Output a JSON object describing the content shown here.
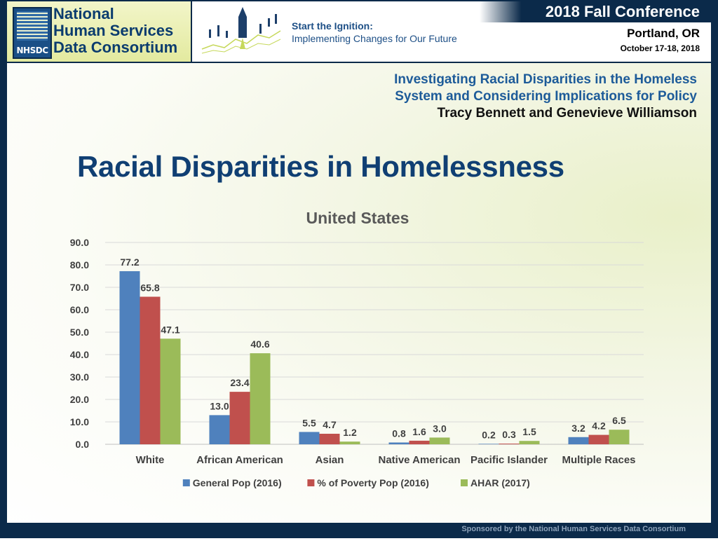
{
  "header": {
    "logo_lines": [
      "National",
      "Human Services",
      "Data Consortium"
    ],
    "logo_abbr": "NHSDC",
    "ignition_line1": "Start the Ignition:",
    "ignition_line2": "Implementing Changes for Our Future",
    "conference_title": "2018 Fall Conference",
    "conference_city": "Portland, OR",
    "conference_date": "October 17-18, 2018"
  },
  "talk": {
    "title_line1": "Investigating Racial Disparities in the Homeless",
    "title_line2": "System and Considering Implications for Policy",
    "authors": "Tracy Bennett and Genevieve Williamson"
  },
  "slide_title": "Racial Disparities in Homelessness",
  "footer": "Sponsored by the National Human Services Data Consortium",
  "colors": {
    "navy": "#0b2a4a",
    "title_blue": "#103f73",
    "series_blue": "#4f81bd",
    "series_red": "#c0504d",
    "series_green": "#9bbb59"
  },
  "chart_data": {
    "type": "bar",
    "title": "United States",
    "categories": [
      "White",
      "African American",
      "Asian",
      "Native American",
      "Pacific Islander",
      "Multiple Races"
    ],
    "series": [
      {
        "name": "General Pop (2016)",
        "color": "#4f81bd",
        "values": [
          77.2,
          13.0,
          5.5,
          0.8,
          0.2,
          3.2
        ]
      },
      {
        "name": "% of Poverty Pop (2016)",
        "color": "#c0504d",
        "values": [
          65.8,
          23.4,
          4.7,
          1.6,
          0.3,
          4.2
        ]
      },
      {
        "name": "AHAR (2017)",
        "color": "#9bbb59",
        "values": [
          47.1,
          40.6,
          1.2,
          3.0,
          1.5,
          6.5
        ]
      }
    ],
    "ylim": [
      0,
      90
    ],
    "yticks": [
      0,
      10,
      20,
      30,
      40,
      50,
      60,
      70,
      80,
      90
    ],
    "ytick_labels": [
      "0.0",
      "10.0",
      "20.0",
      "30.0",
      "40.0",
      "50.0",
      "60.0",
      "70.0",
      "80.0",
      "90.0"
    ],
    "value_labels": [
      [
        "77.2",
        "13.0",
        "5.5",
        "0.8",
        "0.2",
        "3.2"
      ],
      [
        "65.8",
        "23.4",
        "4.7",
        "1.6",
        "0.3",
        "4.2"
      ],
      [
        "47.1",
        "40.6",
        "1.2",
        "3.0",
        "1.5",
        "6.5"
      ]
    ],
    "grid": true,
    "legend_position": "bottom"
  }
}
